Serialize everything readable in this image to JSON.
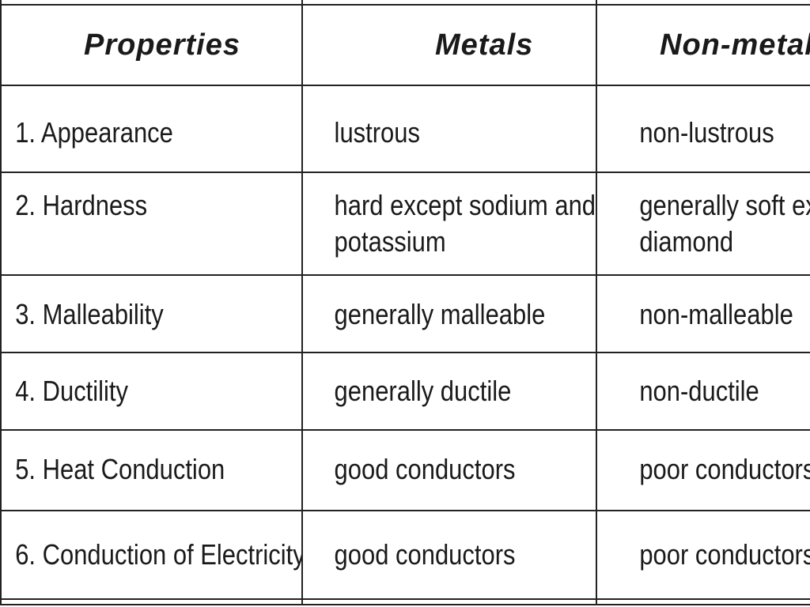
{
  "table": {
    "headers": [
      "Properties",
      "Metals",
      "Non-metals"
    ],
    "rows": [
      {
        "property": "1. Appearance",
        "metals": [
          "lustrous"
        ],
        "nonmetals": [
          "non-lustrous"
        ]
      },
      {
        "property": "2. Hardness",
        "metals": [
          "hard except sodium and",
          "potassium"
        ],
        "nonmetals": [
          "generally soft ex",
          "diamond"
        ]
      },
      {
        "property": "3. Malleability",
        "metals": [
          "generally malleable"
        ],
        "nonmetals": [
          "non-malleable"
        ]
      },
      {
        "property": "4. Ductility",
        "metals": [
          "generally ductile"
        ],
        "nonmetals": [
          "non-ductile"
        ]
      },
      {
        "property": "5. Heat Conduction",
        "metals": [
          "good conductors"
        ],
        "nonmetals": [
          "poor conductors"
        ]
      },
      {
        "property": "6. Conduction of Electricity",
        "metals": [
          "good conductors"
        ],
        "nonmetals": [
          "poor conductors"
        ]
      }
    ]
  },
  "colors": {
    "text": "#1a1a1a",
    "border": "#222222",
    "background": "#ffffff"
  }
}
